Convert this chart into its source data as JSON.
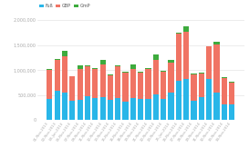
{
  "legend_labels": [
    "Fuß",
    "GBP",
    "GmP"
  ],
  "bar_color_blue": "#29b6e8",
  "bar_color_red": "#f07464",
  "bar_color_green": "#3dab3d",
  "blue_values": [
    430000,
    590000,
    550000,
    390000,
    400000,
    480000,
    440000,
    460000,
    400000,
    440000,
    380000,
    440000,
    420000,
    420000,
    510000,
    430000,
    550000,
    780000,
    820000,
    390000,
    460000,
    830000,
    560000,
    320000,
    310000
  ],
  "red_values": [
    580000,
    620000,
    730000,
    480000,
    630000,
    600000,
    590000,
    650000,
    500000,
    640000,
    570000,
    580000,
    530000,
    600000,
    700000,
    540000,
    600000,
    950000,
    950000,
    530000,
    480000,
    640000,
    960000,
    530000,
    450000
  ],
  "green_values": [
    15000,
    15000,
    110000,
    5000,
    70000,
    15000,
    15000,
    100000,
    15000,
    15000,
    15000,
    95000,
    15000,
    15000,
    95000,
    15000,
    50000,
    15000,
    110000,
    15000,
    15000,
    15000,
    50000,
    15000,
    10000
  ],
  "x_labels": [
    "01-Nov-2013",
    "02-Nov-2013",
    "03-Jun-2014",
    "05-Nov-2014",
    "07-Nov-2014",
    "09-Nov-2014",
    "11-Nov-2014",
    "12-Nov-2014",
    "13-Nov-2014",
    "15-Nov-2014",
    "16-Nov-2014",
    "18-Nov-2014",
    "19-Nov-2014",
    "21-Nov-2014",
    "22-Nov-2014",
    "23-Nov-2014",
    "25-Jun-2014",
    "26-Nov-2014",
    "27-Nov-2014",
    "28-Nov-2014",
    "29-Nov-2014",
    "31-Nov-2014",
    "32-Nov-2014",
    "33-Nov-2014",
    "34-Nov-2014"
  ],
  "ylim": [
    0,
    2000000
  ],
  "yticks": [
    0,
    500000,
    1000000,
    1500000,
    2000000
  ],
  "ytick_labels": [
    "0",
    "500,000",
    "1,000,000",
    "1,500,000",
    "2,000,000"
  ],
  "background_color": "#ffffff",
  "grid_color": "#dddddd"
}
